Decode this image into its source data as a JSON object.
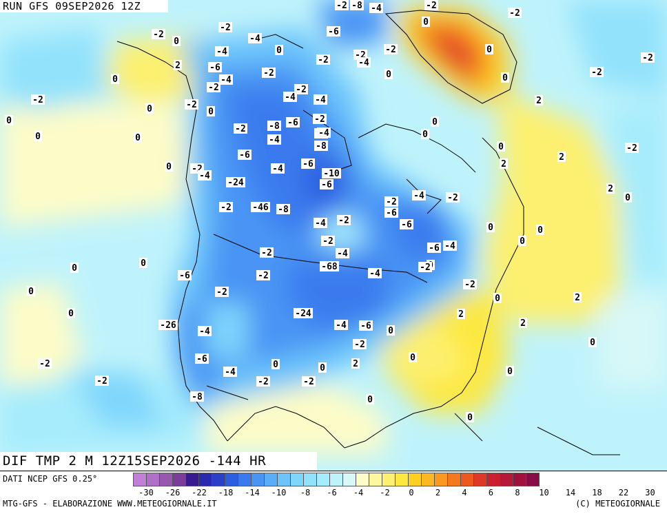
{
  "header": {
    "run_title": "RUN GFS 09SEP2026 12Z",
    "valid_title": "DIF TMP 2 M 12Z15SEP2026 -144 HR"
  },
  "footer": {
    "source": "DATI NCEP GFS 0.25°",
    "credit_left": "MTG-GFS - ELABORAZIONE WWW.METEOGIORNALE.IT",
    "credit_right": "(C) METEOGIORNALE"
  },
  "legend": {
    "colors": [
      "#c080d8",
      "#b070c8",
      "#9858b0",
      "#7a3d98",
      "#3a1a90",
      "#2a2ab0",
      "#2a40c8",
      "#2c5ee0",
      "#3a7aee",
      "#4a94f4",
      "#5aaef8",
      "#6cc4fb",
      "#7fd6fc",
      "#92e2fc",
      "#a6ecfc",
      "#bff3fb",
      "#d8f8f8",
      "#fdfcc8",
      "#fdf8a0",
      "#fdf070",
      "#fde840",
      "#fdd020",
      "#fcb820",
      "#fa9820",
      "#f47820",
      "#ec5820",
      "#e03828",
      "#cc2030",
      "#b81838",
      "#a01040",
      "#880c48"
    ],
    "ticks": [
      "-30",
      "-26",
      "-22",
      "-18",
      "-14",
      "-10",
      "-8",
      "-6",
      "-4",
      "-2",
      "0",
      "2",
      "4",
      "6",
      "8",
      "10",
      "14",
      "18",
      "22",
      "30"
    ]
  },
  "map": {
    "contour_labels": [
      {
        "t": "-2"
      },
      {
        "t": "-8"
      },
      {
        "t": "-4"
      },
      {
        "t": "-2"
      },
      {
        "t": "-2"
      },
      {
        "t": "0"
      },
      {
        "t": "-2"
      },
      {
        "t": "-2"
      },
      {
        "t": "-4"
      },
      {
        "t": "-6"
      },
      {
        "t": "0"
      },
      {
        "t": "0"
      },
      {
        "t": "-2"
      },
      {
        "t": "-2"
      },
      {
        "t": "0"
      },
      {
        "t": "-4"
      },
      {
        "t": "-2"
      },
      {
        "t": "-2"
      },
      {
        "t": "-4"
      },
      {
        "t": "-2"
      },
      {
        "t": "0"
      },
      {
        "t": "-2"
      },
      {
        "t": "2"
      },
      {
        "t": "-6"
      },
      {
        "t": "-2"
      },
      {
        "t": "-4"
      },
      {
        "t": "0"
      },
      {
        "t": "-2"
      },
      {
        "t": "-2"
      },
      {
        "t": "-4"
      },
      {
        "t": "-4"
      },
      {
        "t": "0"
      },
      {
        "t": "2"
      },
      {
        "t": "-2"
      },
      {
        "t": "0"
      },
      {
        "t": "0"
      },
      {
        "t": "-6"
      },
      {
        "t": "-8"
      },
      {
        "t": "-2"
      },
      {
        "t": "-2"
      },
      {
        "t": "0"
      },
      {
        "t": "0"
      },
      {
        "t": "-2"
      },
      {
        "t": "-4"
      },
      {
        "t": "-4"
      },
      {
        "t": "0"
      },
      {
        "t": "0"
      },
      {
        "t": "0"
      },
      {
        "t": "-8"
      },
      {
        "t": "0"
      },
      {
        "t": "-2"
      },
      {
        "t": "-6"
      },
      {
        "t": "-6"
      },
      {
        "t": "-4"
      },
      {
        "t": "-10"
      },
      {
        "t": "2"
      },
      {
        "t": "-2"
      },
      {
        "t": "-4"
      },
      {
        "t": "-24"
      },
      {
        "t": "-6"
      },
      {
        "t": "2"
      },
      {
        "t": "0"
      },
      {
        "t": "-4"
      },
      {
        "t": "-2"
      },
      {
        "t": "-2"
      },
      {
        "t": "-46"
      },
      {
        "t": "-8"
      },
      {
        "t": "-6"
      },
      {
        "t": "-4"
      },
      {
        "t": "-2"
      },
      {
        "t": "0"
      },
      {
        "t": "2"
      },
      {
        "t": "-2"
      },
      {
        "t": "-6"
      },
      {
        "t": "-4"
      },
      {
        "t": "-6"
      },
      {
        "t": "-4"
      },
      {
        "t": "0"
      },
      {
        "t": "-68"
      },
      {
        "t": "-2"
      },
      {
        "t": "0"
      },
      {
        "t": "-4"
      },
      {
        "t": "-2"
      },
      {
        "t": "0"
      },
      {
        "t": "0"
      },
      {
        "t": "-2"
      },
      {
        "t": "-2"
      },
      {
        "t": "-6"
      },
      {
        "t": "2"
      },
      {
        "t": "-24"
      },
      {
        "t": "0"
      },
      {
        "t": "2"
      },
      {
        "t": "-26"
      },
      {
        "t": "-4"
      },
      {
        "t": "-6"
      },
      {
        "t": "0"
      },
      {
        "t": "-4"
      },
      {
        "t": "-2"
      },
      {
        "t": "2"
      },
      {
        "t": "0"
      },
      {
        "t": "-6"
      },
      {
        "t": "-2"
      },
      {
        "t": "0"
      },
      {
        "t": "2"
      },
      {
        "t": "-4"
      },
      {
        "t": "-2"
      },
      {
        "t": "-2"
      },
      {
        "t": "0"
      },
      {
        "t": "-2"
      },
      {
        "t": "0"
      },
      {
        "t": "-8"
      },
      {
        "t": "0"
      },
      {
        "t": "-2"
      },
      {
        "t": "0"
      },
      {
        "t": "0"
      },
      {
        "t": "0"
      },
      {
        "t": "0"
      },
      {
        "t": "-2"
      },
      {
        "t": "0"
      },
      {
        "t": "0"
      }
    ]
  }
}
